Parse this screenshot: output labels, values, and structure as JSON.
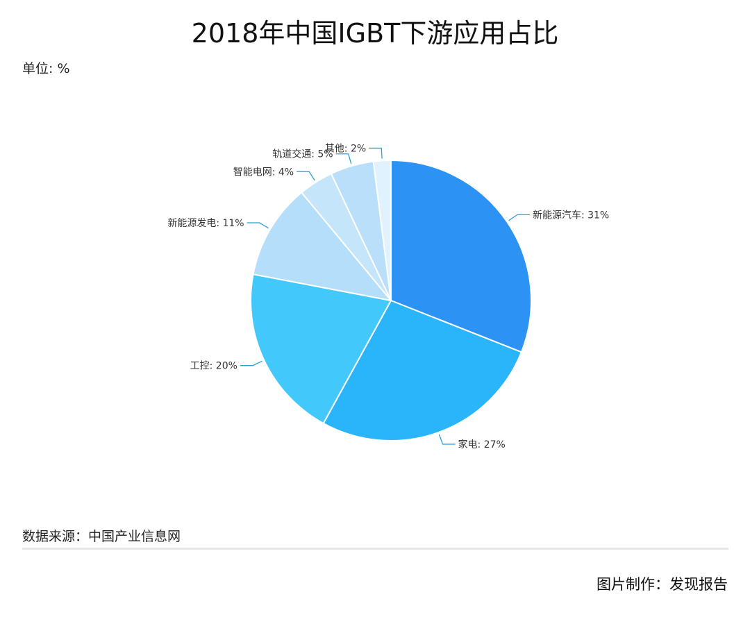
{
  "header": {
    "title": "2018年中国IGBT下游应用占比",
    "unit": "单位: %"
  },
  "footer": {
    "source": "数据来源：中国产业信息网",
    "credit": "图片制作：发现报告"
  },
  "chart_data": {
    "type": "pie",
    "title": "2018年中国IGBT下游应用占比",
    "unit": "%",
    "label_separator": ": ",
    "slices": [
      {
        "label": "新能源汽车",
        "value": 31,
        "color": "#2c93f5"
      },
      {
        "label": "家电",
        "value": 27,
        "color": "#2ab4f9"
      },
      {
        "label": "工控",
        "value": 20,
        "color": "#43c8fb"
      },
      {
        "label": "新能源发电",
        "value": 11,
        "color": "#b4def9"
      },
      {
        "label": "智能电网",
        "value": 4,
        "color": "#c5e6fa"
      },
      {
        "label": "轨道交通",
        "value": 5,
        "color": "#b9dffa"
      },
      {
        "label": "其他",
        "value": 2,
        "color": "#e0f2fd"
      }
    ],
    "start_angle_deg": 0,
    "direction": "clockwise",
    "leader_color": "#2a9fd6"
  }
}
